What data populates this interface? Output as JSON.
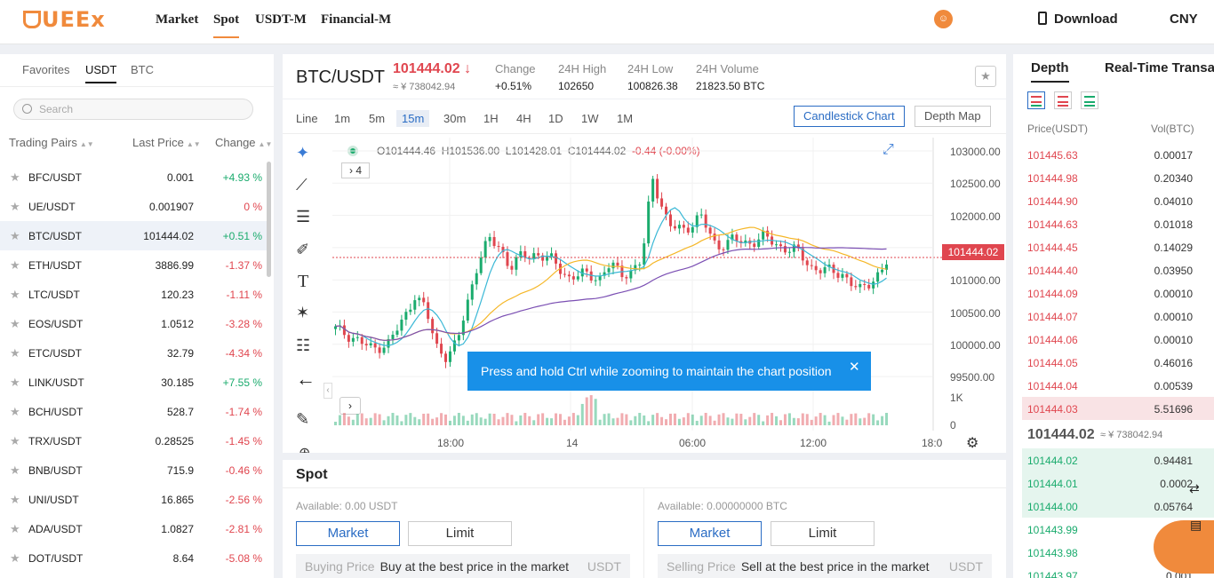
{
  "nav": {
    "logo": "UEEx",
    "items": [
      "Market",
      "Spot",
      "USDT-M",
      "Financial-M"
    ],
    "download": "Download",
    "currency": "CNY"
  },
  "left": {
    "tabs": [
      "Favorites",
      "USDT",
      "BTC"
    ],
    "search_placeholder": "Search",
    "headers": [
      "Trading Pairs",
      "Last Price",
      "Change"
    ],
    "pairs": [
      {
        "pair": "BFC/USDT",
        "price": "0.001",
        "change": "+4.93 %",
        "dir": "up"
      },
      {
        "pair": "UE/USDT",
        "price": "0.001907",
        "change": "0 %",
        "dir": "dn"
      },
      {
        "pair": "BTC/USDT",
        "price": "101444.02",
        "change": "+0.51 %",
        "dir": "up"
      },
      {
        "pair": "ETH/USDT",
        "price": "3886.99",
        "change": "-1.37 %",
        "dir": "dn"
      },
      {
        "pair": "LTC/USDT",
        "price": "120.23",
        "change": "-1.11 %",
        "dir": "dn"
      },
      {
        "pair": "EOS/USDT",
        "price": "1.0512",
        "change": "-3.28 %",
        "dir": "dn"
      },
      {
        "pair": "ETC/USDT",
        "price": "32.79",
        "change": "-4.34 %",
        "dir": "dn"
      },
      {
        "pair": "LINK/USDT",
        "price": "30.185",
        "change": "+7.55 %",
        "dir": "up"
      },
      {
        "pair": "BCH/USDT",
        "price": "528.7",
        "change": "-1.74 %",
        "dir": "dn"
      },
      {
        "pair": "TRX/USDT",
        "price": "0.28525",
        "change": "-1.45 %",
        "dir": "dn"
      },
      {
        "pair": "BNB/USDT",
        "price": "715.9",
        "change": "-0.46 %",
        "dir": "dn"
      },
      {
        "pair": "UNI/USDT",
        "price": "16.865",
        "change": "-2.56 %",
        "dir": "dn"
      },
      {
        "pair": "ADA/USDT",
        "price": "1.0827",
        "change": "-2.81 %",
        "dir": "dn"
      },
      {
        "pair": "DOT/USDT",
        "price": "8.64",
        "change": "-5.08 %",
        "dir": "dn"
      }
    ]
  },
  "ticker": {
    "symbol": "BTC/USDT",
    "last": "101444.02",
    "last_arrow": "↓",
    "cny": "≈ ¥ 738042.94",
    "change_label": "Change",
    "change_value": "+0.51%",
    "high_label": "24H High",
    "high_value": "102650",
    "low_label": "24H Low",
    "low_value": "100826.38",
    "vol_label": "24H Volume",
    "vol_value": "21823.50 BTC"
  },
  "chart": {
    "intervals": [
      "Line",
      "1m",
      "5m",
      "15m",
      "30m",
      "1H",
      "4H",
      "1D",
      "1W",
      "1M"
    ],
    "active_interval": "15m",
    "btn_candle": "Candlestick Chart",
    "btn_depth": "Depth Map",
    "ohlc": {
      "o": "O101444.46",
      "h": "H101536.00",
      "l": "L101428.01",
      "c": "C101444.02",
      "chg": "-0.44 (-0.00%)"
    },
    "indicator_count": "4",
    "y_ticks": [
      "103000.00",
      "102500.00",
      "102000.00",
      "101500.00",
      "101000.00",
      "100500.00",
      "100000.00",
      "99500.00"
    ],
    "vol_ticks": [
      "1K",
      "0"
    ],
    "x_ticks": [
      "18:00",
      "14",
      "06:00",
      "12:00",
      "18:0"
    ],
    "price_tag": "101444.02",
    "toast": "Press and hold Ctrl while zooming to maintain the chart position",
    "up_color": "#1aab6d",
    "down_color": "#e0464f",
    "ma_colors": [
      "#3bb8d6",
      "#f5b728",
      "#7b4fb3"
    ]
  },
  "spot": {
    "title": "Spot",
    "buy": {
      "available": "Available: 0.00 USDT",
      "market": "Market",
      "limit": "Limit",
      "price_label": "Buying Price",
      "price_value": "Buy at the best price in the market",
      "unit": "USDT"
    },
    "sell": {
      "available": "Available: 0.00000000 BTC",
      "market": "Market",
      "limit": "Limit",
      "price_label": "Selling Price",
      "price_value": "Sell at the best price in the market",
      "unit": "USDT"
    }
  },
  "depth": {
    "tabs": [
      "Depth",
      "Real-Time Transac"
    ],
    "headers": [
      "Price(USDT)",
      "Vol(BTC)"
    ],
    "asks": [
      {
        "p": "101445.63",
        "v": "0.00017"
      },
      {
        "p": "101444.98",
        "v": "0.20340"
      },
      {
        "p": "101444.90",
        "v": "0.04010"
      },
      {
        "p": "101444.63",
        "v": "0.01018"
      },
      {
        "p": "101444.45",
        "v": "0.14029"
      },
      {
        "p": "101444.40",
        "v": "0.03950"
      },
      {
        "p": "101444.09",
        "v": "0.00010"
      },
      {
        "p": "101444.07",
        "v": "0.00010"
      },
      {
        "p": "101444.06",
        "v": "0.00010"
      },
      {
        "p": "101444.05",
        "v": "0.46016"
      },
      {
        "p": "101444.04",
        "v": "0.00539"
      },
      {
        "p": "101444.03",
        "v": "5.51696"
      }
    ],
    "mid": "101444.02",
    "mid_cny": "≈ ¥ 738042.94",
    "bids": [
      {
        "p": "101444.02",
        "v": "0.94481"
      },
      {
        "p": "101444.01",
        "v": "0.0002"
      },
      {
        "p": "101444.00",
        "v": "0.05764"
      },
      {
        "p": "101443.99",
        "v": ""
      },
      {
        "p": "101443.98",
        "v": ""
      },
      {
        "p": "101443.97",
        "v": "0.001"
      }
    ]
  }
}
